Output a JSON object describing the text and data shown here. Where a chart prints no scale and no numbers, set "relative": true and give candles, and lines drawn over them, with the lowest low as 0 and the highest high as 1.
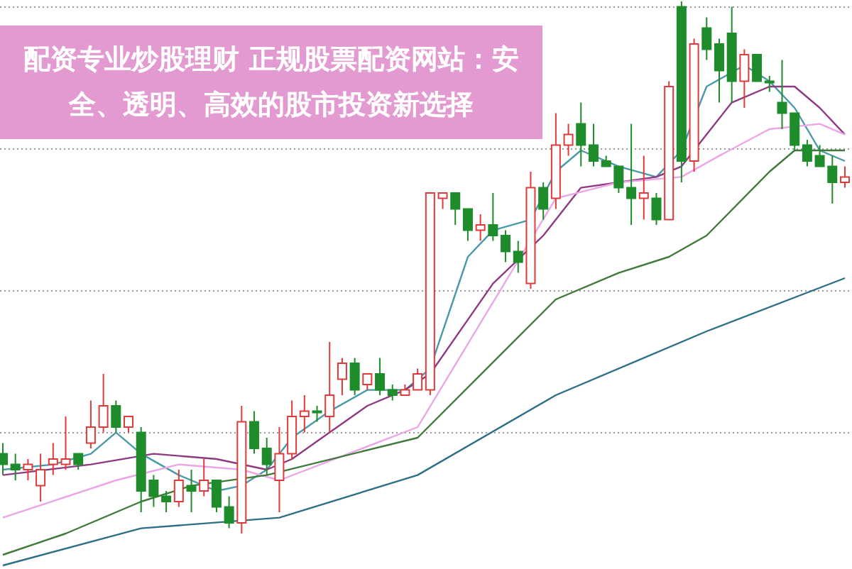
{
  "chart_data": {
    "type": "candlestick",
    "title": "配资专业炒股理财 正规股票配资网站：安全、透明、高效的股市投资新选择",
    "relative": true,
    "grid": "y",
    "categories": [
      null,
      null,
      null,
      null,
      null,
      null,
      null,
      null,
      null,
      null,
      null,
      null,
      null,
      null,
      null,
      null,
      null,
      null,
      null,
      null,
      null,
      null,
      null,
      null,
      null,
      null,
      null,
      null,
      null,
      null,
      null,
      null,
      null,
      null,
      null,
      null,
      null,
      null,
      null,
      null,
      null,
      null,
      null,
      null,
      null,
      null,
      null,
      null,
      null,
      null,
      null,
      null,
      null,
      null,
      null,
      null,
      null,
      null,
      null,
      null,
      null,
      null,
      null,
      null,
      null,
      null,
      null,
      null
    ],
    "ohlc": [
      [
        0.15,
        0.17,
        0.11,
        0.13
      ],
      [
        0.13,
        0.15,
        0.1,
        0.12
      ],
      [
        0.12,
        0.14,
        0.1,
        0.13
      ],
      [
        0.09,
        0.15,
        0.06,
        0.12
      ],
      [
        0.13,
        0.17,
        0.11,
        0.14
      ],
      [
        0.13,
        0.22,
        0.12,
        0.14
      ],
      [
        0.15,
        0.15,
        0.12,
        0.13
      ],
      [
        0.17,
        0.25,
        0.16,
        0.2
      ],
      [
        0.2,
        0.3,
        0.19,
        0.24
      ],
      [
        0.24,
        0.25,
        0.19,
        0.2
      ],
      [
        0.2,
        0.22,
        0.19,
        0.22
      ],
      [
        0.19,
        0.2,
        0.04,
        0.08
      ],
      [
        0.1,
        0.11,
        0.05,
        0.07
      ],
      [
        0.07,
        0.08,
        0.04,
        0.06
      ],
      [
        0.06,
        0.12,
        0.05,
        0.1
      ],
      [
        0.09,
        0.12,
        0.04,
        0.08
      ],
      [
        0.08,
        0.14,
        0.07,
        0.1
      ],
      [
        0.1,
        0.1,
        0.04,
        0.05
      ],
      [
        0.05,
        0.07,
        0.01,
        0.02
      ],
      [
        0.02,
        0.24,
        0,
        0.21
      ],
      [
        0.21,
        0.23,
        0.15,
        0.16
      ],
      [
        0.16,
        0.18,
        0.11,
        0.13
      ],
      [
        0.1,
        0.2,
        0.04,
        0.15
      ],
      [
        0.15,
        0.25,
        0.14,
        0.22
      ],
      [
        0.22,
        0.26,
        0.19,
        0.23
      ],
      [
        0.23,
        0.24,
        0.21,
        0.23
      ],
      [
        0.22,
        0.36,
        0.19,
        0.26
      ],
      [
        0.29,
        0.33,
        0.26,
        0.32
      ],
      [
        0.32,
        0.33,
        0.26,
        0.27
      ],
      [
        0.28,
        0.3,
        0.27,
        0.3
      ],
      [
        0.3,
        0.33,
        0.26,
        0.27
      ],
      [
        0.27,
        0.28,
        0.25,
        0.26
      ],
      [
        0.26,
        0.28,
        0.26,
        0.27
      ],
      [
        0.27,
        0.31,
        0.27,
        0.3
      ],
      [
        0.27,
        0.64,
        0.26,
        0.64
      ],
      [
        0.63,
        0.64,
        0.61,
        0.64
      ],
      [
        0.64,
        0.64,
        0.58,
        0.61
      ],
      [
        0.61,
        0.61,
        0.55,
        0.57
      ],
      [
        0.57,
        0.6,
        0.55,
        0.58
      ],
      [
        0.58,
        0.64,
        0.55,
        0.56
      ],
      [
        0.56,
        0.57,
        0.51,
        0.53
      ],
      [
        0.53,
        0.55,
        0.49,
        0.51
      ],
      [
        0.47,
        0.68,
        0.46,
        0.65
      ],
      [
        0.65,
        0.66,
        0.59,
        0.61
      ],
      [
        0.63,
        0.79,
        0.61,
        0.73
      ],
      [
        0.73,
        0.77,
        0.71,
        0.75
      ],
      [
        0.77,
        0.81,
        0.69,
        0.73
      ],
      [
        0.73,
        0.77,
        0.69,
        0.7
      ],
      [
        0.7,
        0.71,
        0.69,
        0.69
      ],
      [
        0.69,
        0.69,
        0.64,
        0.65
      ],
      [
        0.65,
        0.77,
        0.58,
        0.63
      ],
      [
        0.63,
        0.71,
        0.59,
        0.64
      ],
      [
        0.63,
        0.64,
        0.58,
        0.59
      ],
      [
        0.59,
        0.85,
        0.59,
        0.84
      ],
      [
        0.99,
        1,
        0.66,
        0.7
      ],
      [
        0.7,
        0.93,
        0.68,
        0.92
      ],
      [
        0.95,
        0.97,
        0.89,
        0.91
      ],
      [
        0.92,
        0.93,
        0.81,
        0.87
      ],
      [
        0.94,
        0.99,
        0.81,
        0.85
      ],
      [
        0.85,
        0.91,
        0.8,
        0.9
      ],
      [
        0.9,
        0.9,
        0.85,
        0.85
      ],
      [
        0.85,
        0.86,
        0.83,
        0.85
      ],
      [
        0.81,
        0.89,
        0.76,
        0.79
      ],
      [
        0.79,
        0.79,
        0.72,
        0.73
      ],
      [
        0.73,
        0.74,
        0.69,
        0.7
      ],
      [
        0.71,
        0.73,
        0.69,
        0.69
      ],
      [
        0.69,
        0.71,
        0.62,
        0.66
      ],
      [
        0.66,
        0.69,
        0.65,
        0.67
      ]
    ],
    "colors": [
      "#1e8c2a",
      "#1e8c2a",
      "#e03a3a",
      "#e03a3a",
      "#e03a3a",
      "#e03a3a",
      "#1e8c2a",
      "#e03a3a",
      "#e03a3a",
      "#1e8c2a",
      "#e03a3a",
      "#1e8c2a",
      "#1e8c2a",
      "#1e8c2a",
      "#e03a3a",
      "#1e8c2a",
      "#e03a3a",
      "#1e8c2a",
      "#1e8c2a",
      "#e03a3a",
      "#1e8c2a",
      "#1e8c2a",
      "#e03a3a",
      "#e03a3a",
      "#e03a3a",
      "#1e8c2a",
      "#e03a3a",
      "#e03a3a",
      "#1e8c2a",
      "#e03a3a",
      "#1e8c2a",
      "#1e8c2a",
      "#e03a3a",
      "#e03a3a",
      "#e03a3a",
      "#e03a3a",
      "#1e8c2a",
      "#1e8c2a",
      "#e03a3a",
      "#1e8c2a",
      "#1e8c2a",
      "#1e8c2a",
      "#e03a3a",
      "#1e8c2a",
      "#e03a3a",
      "#e03a3a",
      "#1e8c2a",
      "#1e8c2a",
      "#1e8c2a",
      "#1e8c2a",
      "#1e8c2a",
      "#e03a3a",
      "#1e8c2a",
      "#e03a3a",
      "#1e8c2a",
      "#e03a3a",
      "#1e8c2a",
      "#1e8c2a",
      "#1e8c2a",
      "#e03a3a",
      "#1e8c2a",
      "#1e8c2a",
      "#1e8c2a",
      "#1e8c2a",
      "#1e8c2a",
      "#1e8c2a",
      "#1e8c2a",
      "#e03a3a"
    ],
    "series": [
      {
        "type": "line",
        "color": "#4a9aa8",
        "values": [
          0.12,
          null,
          null,
          null,
          0.13,
          null,
          null,
          0.15,
          null,
          0.19,
          null,
          0.15,
          null,
          null,
          0.11,
          null,
          null,
          0.08,
          null,
          0.09,
          null,
          0.12,
          null,
          0.18,
          null,
          null,
          0.23,
          null,
          null,
          0.27,
          null,
          null,
          0.27,
          null,
          0.31,
          null,
          null,
          0.52,
          null,
          0.57,
          null,
          null,
          0.59,
          null,
          0.68,
          null,
          0.72,
          null,
          null,
          0.69,
          null,
          null,
          0.67,
          null,
          0.72,
          null,
          0.84,
          null,
          null,
          0.88,
          null,
          0.85,
          null,
          0.8,
          null,
          0.72,
          null,
          0.7
        ]
      },
      {
        "type": "line",
        "color": "#8e3a80",
        "values": [
          0.11,
          null,
          null,
          null,
          null,
          null,
          null,
          0.13,
          null,
          null,
          null,
          null,
          0.15,
          null,
          null,
          null,
          null,
          0.14,
          null,
          null,
          null,
          0.12,
          null,
          0.14,
          null,
          null,
          0.19,
          null,
          null,
          0.24,
          null,
          null,
          0.27,
          null,
          0.3,
          null,
          null,
          null,
          null,
          0.47,
          null,
          null,
          null,
          0.56,
          null,
          null,
          0.65,
          null,
          null,
          0.66,
          null,
          null,
          0.67,
          null,
          0.69,
          null,
          0.75,
          null,
          0.81,
          null,
          null,
          0.84,
          null,
          0.84,
          null,
          0.8,
          null,
          0.75
        ]
      },
      {
        "type": "line",
        "color": "#eaa6e6",
        "values": [
          0.03,
          null,
          null,
          null,
          null,
          null,
          null,
          null,
          null,
          0.1,
          null,
          null,
          null,
          null,
          0.13,
          null,
          null,
          null,
          null,
          0.12,
          null,
          null,
          0.1,
          null,
          null,
          null,
          null,
          null,
          null,
          null,
          null,
          null,
          null,
          0.2,
          null,
          null,
          null,
          null,
          null,
          null,
          null,
          null,
          null,
          null,
          0.63,
          null,
          null,
          null,
          null,
          0.66,
          null,
          null,
          null,
          null,
          0.67,
          null,
          null,
          0.71,
          null,
          null,
          null,
          0.76,
          null,
          null,
          null,
          0.77,
          null,
          0.75
        ]
      },
      {
        "type": "line",
        "color": "#3f7a3a",
        "values": [
          -0.04,
          null,
          null,
          null,
          null,
          0,
          null,
          null,
          null,
          null,
          null,
          0.06,
          null,
          null,
          null,
          0.09,
          null,
          null,
          null,
          null,
          null,
          0.11,
          null,
          null,
          null,
          null,
          null,
          null,
          null,
          null,
          null,
          null,
          null,
          0.18,
          null,
          null,
          null,
          null,
          null,
          null,
          null,
          null,
          null,
          null,
          0.44,
          null,
          null,
          null,
          null,
          0.49,
          null,
          null,
          null,
          0.52,
          null,
          null,
          0.56,
          null,
          null,
          null,
          null,
          0.68,
          null,
          0.72,
          null,
          null,
          null,
          0.72
        ]
      },
      {
        "type": "line",
        "color": "#2e6e86",
        "values": [
          -0.06,
          null,
          null,
          null,
          null,
          null,
          null,
          null,
          null,
          null,
          null,
          0.01,
          null,
          null,
          null,
          null,
          null,
          null,
          null,
          null,
          null,
          null,
          0.03,
          null,
          null,
          null,
          null,
          null,
          null,
          null,
          null,
          null,
          null,
          0.11,
          null,
          null,
          null,
          null,
          null,
          null,
          null,
          null,
          null,
          null,
          0.26,
          null,
          null,
          null,
          null,
          null,
          null,
          null,
          null,
          null,
          null,
          null,
          0.38,
          null,
          null,
          null,
          null,
          null,
          null,
          null,
          null,
          null,
          null,
          0.48
        ]
      }
    ]
  }
}
